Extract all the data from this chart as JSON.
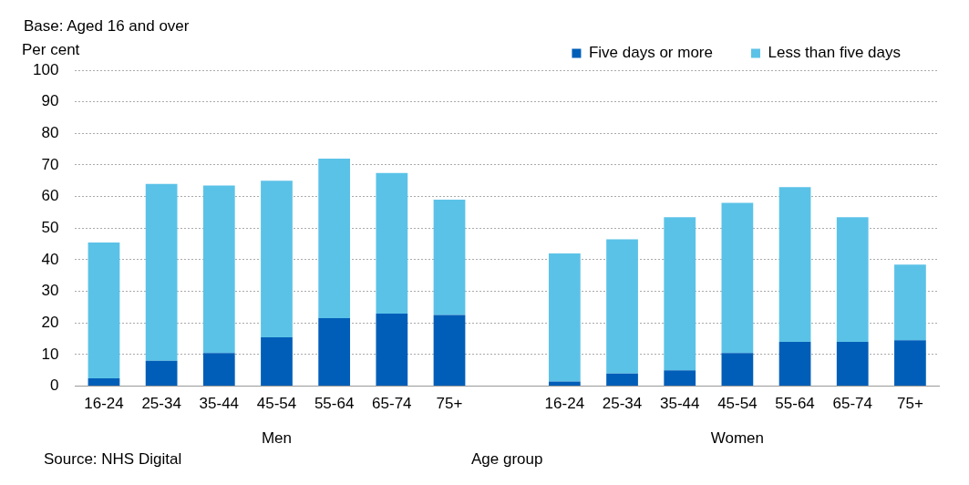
{
  "chart_data": {
    "type": "bar",
    "stacked": true,
    "xlabel": "Age group",
    "ylabel": "Per cent",
    "categories": [
      "16-24",
      "25-34",
      "35-44",
      "45-54",
      "55-64",
      "65-74",
      "75+",
      null,
      "16-24",
      "25-34",
      "35-44",
      "45-54",
      "55-64",
      "65-74",
      "75+"
    ],
    "series": [
      {
        "name": "Five days or more",
        "color": "#005eb8",
        "values": [
          2.5,
          8,
          10.5,
          15.5,
          21.5,
          23,
          22.5,
          null,
          1.5,
          4,
          5,
          10.5,
          14,
          14,
          14.5
        ]
      },
      {
        "name": "Less than five days",
        "color": "#5bc2e7",
        "values": [
          43,
          56,
          53,
          49.5,
          50.5,
          44.5,
          36.5,
          null,
          40.5,
          42.5,
          48.5,
          47.5,
          49,
          39.5,
          24
        ]
      }
    ],
    "ylim": [
      0,
      100
    ],
    "yticks": [
      0,
      10,
      20,
      30,
      40,
      50,
      60,
      70,
      80,
      90,
      100
    ],
    "grid": "y",
    "legend": "top right",
    "annotations": [
      "Base: Aged 16 and over",
      "Men",
      "Women",
      "Source: NHS Digital"
    ]
  }
}
